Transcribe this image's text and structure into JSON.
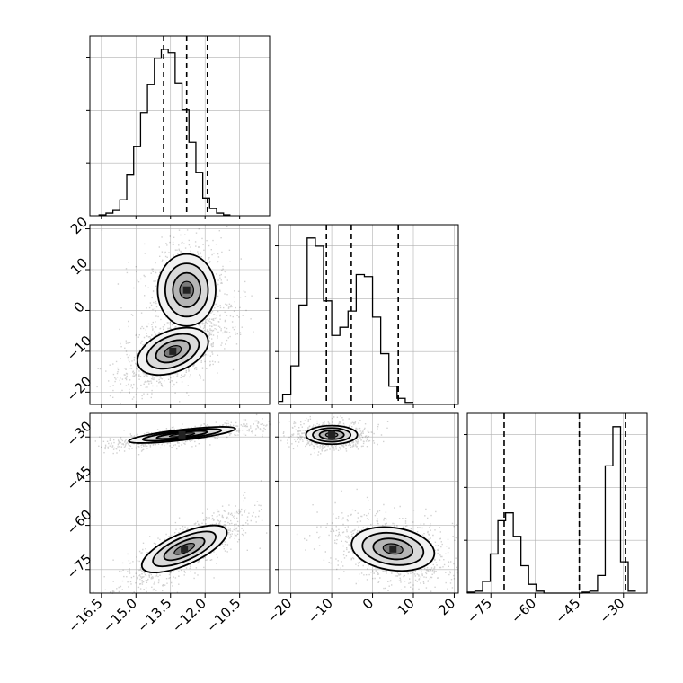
{
  "chart_data": {
    "type": "corner",
    "parameters": [
      {
        "index": 0,
        "range": [
          -17.0,
          -9.2
        ]
      },
      {
        "index": 1,
        "range": [
          -23.0,
          21.0
        ]
      },
      {
        "index": 2,
        "range": [
          -83.0,
          -22.0
        ]
      }
    ],
    "x_ticks": {
      "0": [
        "−16.5",
        "−15.0",
        "−13.5",
        "−12.0",
        "−10.5"
      ],
      "1": [
        "−20",
        "−10",
        "0",
        "10",
        "20"
      ],
      "2": [
        "−75",
        "−60",
        "−45",
        "−30"
      ]
    },
    "x_tick_values": {
      "0": [
        -16.5,
        -15.0,
        -13.5,
        -12.0,
        -10.5
      ],
      "1": [
        -20,
        -10,
        0,
        10,
        20
      ],
      "2": [
        -75,
        -60,
        -45,
        -30
      ]
    },
    "y_ticks": {
      "1": [
        "−20",
        "−10",
        "0",
        "10",
        "20"
      ],
      "2": [
        "−75",
        "−60",
        "−45",
        "−30"
      ]
    },
    "y_tick_values": {
      "1": [
        -20,
        -10,
        0,
        10,
        20
      ],
      "2": [
        -75,
        -60,
        -45,
        -30
      ]
    },
    "quantiles": [
      [
        -13.8,
        -12.8,
        -11.9
      ],
      [
        -11.3,
        -5.2,
        6.3
      ],
      [
        -70.5,
        -45.0,
        -29.3
      ]
    ],
    "histograms": [
      {
        "edges_start": -16.6,
        "bin_width": 0.3,
        "counts": [
          1,
          3,
          6,
          18,
          46,
          78,
          116,
          148,
          178,
          188,
          184,
          150,
          120,
          83,
          49,
          20,
          8,
          3,
          1
        ]
      },
      {
        "edges_start": -24.0,
        "bin_width": 2.0,
        "counts": [
          3,
          10,
          38,
          98,
          164,
          156,
          102,
          68,
          76,
          92,
          128,
          126,
          86,
          50,
          18,
          6,
          2
        ]
      },
      {
        "edges_start": -83.0,
        "bin_width": 2.6,
        "counts": [
          1,
          2,
          12,
          40,
          74,
          82,
          58,
          28,
          9,
          2,
          0,
          0,
          0,
          0,
          0,
          1,
          2,
          18,
          130,
          170,
          32,
          2
        ]
      }
    ],
    "grid": true,
    "colors": {
      "line": "#000000",
      "grid": "#b0b0b0",
      "points": "#000000",
      "fill": "#7a7a7a"
    }
  }
}
